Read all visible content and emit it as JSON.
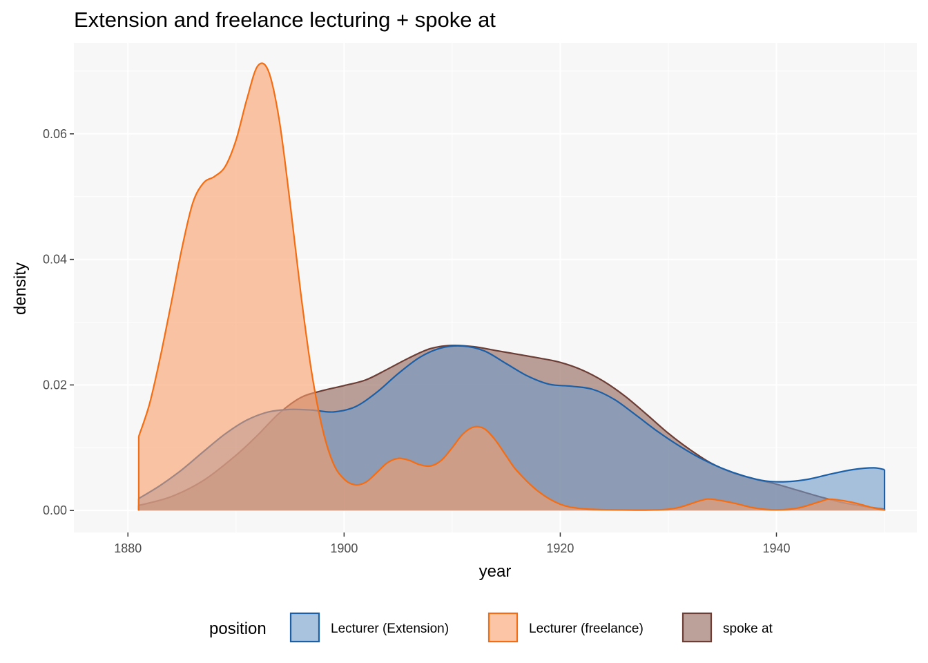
{
  "chart_data": {
    "type": "area",
    "title": "Extension and freelance lecturing + spoke at",
    "xlabel": "year",
    "ylabel": "density",
    "xlim": [
      1875,
      1953
    ],
    "ylim": [
      -0.0035,
      0.0745
    ],
    "x_ticks": [
      1880,
      1900,
      1920,
      1940
    ],
    "y_ticks": [
      0.0,
      0.02,
      0.04,
      0.06
    ],
    "x_tick_labels": [
      "1880",
      "1900",
      "1920",
      "1940"
    ],
    "y_tick_labels": [
      "0.00",
      "0.02",
      "0.04",
      "0.06"
    ],
    "grid": true,
    "legend": {
      "title": "position",
      "placement": "bottom"
    },
    "series": [
      {
        "name": "spoke at",
        "color": "#6b3d35",
        "fill": "#8f6157",
        "points": [
          [
            1881,
            0.0008
          ],
          [
            1884,
            0.0022
          ],
          [
            1887,
            0.0048
          ],
          [
            1890,
            0.0088
          ],
          [
            1892,
            0.012
          ],
          [
            1894,
            0.0155
          ],
          [
            1896,
            0.018
          ],
          [
            1898,
            0.0191
          ],
          [
            1900,
            0.0199
          ],
          [
            1902,
            0.0208
          ],
          [
            1904,
            0.0225
          ],
          [
            1906,
            0.0243
          ],
          [
            1908,
            0.0258
          ],
          [
            1910,
            0.0263
          ],
          [
            1912,
            0.0261
          ],
          [
            1914,
            0.0255
          ],
          [
            1916,
            0.0249
          ],
          [
            1918,
            0.0243
          ],
          [
            1920,
            0.0236
          ],
          [
            1922,
            0.0224
          ],
          [
            1924,
            0.0206
          ],
          [
            1926,
            0.0182
          ],
          [
            1928,
            0.0153
          ],
          [
            1930,
            0.0123
          ],
          [
            1932,
            0.0097
          ],
          [
            1934,
            0.0075
          ],
          [
            1936,
            0.006
          ],
          [
            1938,
            0.005
          ],
          [
            1940,
            0.0042
          ],
          [
            1942,
            0.0032
          ],
          [
            1944,
            0.0022
          ],
          [
            1946,
            0.0013
          ],
          [
            1948,
            0.0007
          ],
          [
            1950,
            0.0002
          ]
        ]
      },
      {
        "name": "Lecturer (Extension)",
        "color": "#1b5fa6",
        "fill": "#6f99c8",
        "points": [
          [
            1881,
            0.0019
          ],
          [
            1883,
            0.004
          ],
          [
            1885,
            0.0065
          ],
          [
            1887,
            0.0094
          ],
          [
            1889,
            0.0122
          ],
          [
            1891,
            0.0144
          ],
          [
            1893,
            0.0157
          ],
          [
            1895,
            0.0161
          ],
          [
            1897,
            0.016
          ],
          [
            1899,
            0.0157
          ],
          [
            1901,
            0.0165
          ],
          [
            1903,
            0.0188
          ],
          [
            1905,
            0.0218
          ],
          [
            1907,
            0.0244
          ],
          [
            1909,
            0.0259
          ],
          [
            1911,
            0.0262
          ],
          [
            1913,
            0.0254
          ],
          [
            1915,
            0.0234
          ],
          [
            1917,
            0.0214
          ],
          [
            1919,
            0.0201
          ],
          [
            1921,
            0.0198
          ],
          [
            1923,
            0.0193
          ],
          [
            1925,
            0.0177
          ],
          [
            1927,
            0.0152
          ],
          [
            1929,
            0.0126
          ],
          [
            1931,
            0.0103
          ],
          [
            1933,
            0.0083
          ],
          [
            1935,
            0.0067
          ],
          [
            1937,
            0.0055
          ],
          [
            1939,
            0.0047
          ],
          [
            1941,
            0.0046
          ],
          [
            1943,
            0.005
          ],
          [
            1945,
            0.0058
          ],
          [
            1947,
            0.0065
          ],
          [
            1949,
            0.0068
          ],
          [
            1950,
            0.0065
          ]
        ]
      },
      {
        "name": "Lecturer (freelance)",
        "color": "#f46d12",
        "fill": "#fa9f6a",
        "points": [
          [
            1881,
            0.0118
          ],
          [
            1882,
            0.017
          ],
          [
            1883,
            0.0245
          ],
          [
            1884,
            0.033
          ],
          [
            1885,
            0.0418
          ],
          [
            1886,
            0.049
          ],
          [
            1887,
            0.0522
          ],
          [
            1888,
            0.0532
          ],
          [
            1889,
            0.0548
          ],
          [
            1890,
            0.059
          ],
          [
            1891,
            0.0655
          ],
          [
            1892,
            0.0708
          ],
          [
            1893,
            0.07
          ],
          [
            1894,
            0.0622
          ],
          [
            1895,
            0.049
          ],
          [
            1896,
            0.0345
          ],
          [
            1897,
            0.022
          ],
          [
            1898,
            0.013
          ],
          [
            1899,
            0.0075
          ],
          [
            1900,
            0.005
          ],
          [
            1901,
            0.0041
          ],
          [
            1902,
            0.0045
          ],
          [
            1903,
            0.006
          ],
          [
            1904,
            0.0076
          ],
          [
            1905,
            0.0083
          ],
          [
            1906,
            0.008
          ],
          [
            1907,
            0.0073
          ],
          [
            1908,
            0.0071
          ],
          [
            1909,
            0.008
          ],
          [
            1910,
            0.01
          ],
          [
            1911,
            0.0122
          ],
          [
            1912,
            0.0133
          ],
          [
            1913,
            0.013
          ],
          [
            1914,
            0.0112
          ],
          [
            1915,
            0.0087
          ],
          [
            1916,
            0.0063
          ],
          [
            1918,
            0.003
          ],
          [
            1920,
            0.001
          ],
          [
            1922,
            0.0003
          ],
          [
            1925,
            0.0001
          ],
          [
            1929,
            0.0001
          ],
          [
            1931,
            0.0005
          ],
          [
            1933,
            0.0016
          ],
          [
            1934,
            0.0018
          ],
          [
            1936,
            0.0012
          ],
          [
            1938,
            0.0004
          ],
          [
            1940,
            0.0001
          ],
          [
            1942,
            0.0004
          ],
          [
            1944,
            0.0014
          ],
          [
            1945,
            0.0018
          ],
          [
            1947,
            0.0013
          ],
          [
            1949,
            0.0004
          ],
          [
            1950,
            0.0001
          ]
        ]
      }
    ],
    "legend_order": [
      "Lecturer (Extension)",
      "Lecturer (freelance)",
      "spoke at"
    ]
  }
}
